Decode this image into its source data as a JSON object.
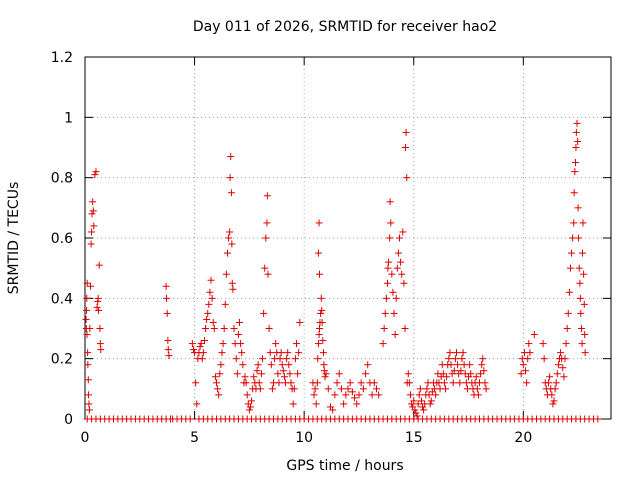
{
  "chart_data": {
    "type": "scatter",
    "title": "Day 011 of 2026, SRMTID for receiver hao2",
    "xlabel": "GPS time / hours",
    "ylabel": "SRMTID / TECUs",
    "xlim": [
      0,
      24
    ],
    "ylim": [
      0,
      1.2
    ],
    "xticks": [
      0,
      5,
      10,
      15,
      20
    ],
    "yticks": [
      0,
      0.2,
      0.4,
      0.6,
      0.8,
      1,
      1.2
    ],
    "ytick_labels": [
      "0",
      "0.2",
      "0.4",
      "0.6",
      "0.8",
      "1",
      "1.2"
    ],
    "grid": true,
    "grid_style": "dotted",
    "marker": "+",
    "color": "#dd0000",
    "points": [
      [
        0.05,
        0.33
      ],
      [
        0.06,
        0.3
      ],
      [
        0.07,
        0.36
      ],
      [
        0.08,
        0.4
      ],
      [
        0.09,
        0.28
      ],
      [
        0.1,
        0.45
      ],
      [
        0.12,
        0.22
      ],
      [
        0.13,
        0.18
      ],
      [
        0.15,
        0.13
      ],
      [
        0.16,
        0.08
      ],
      [
        0.18,
        0.05
      ],
      [
        0.2,
        0.03
      ],
      [
        0.22,
        0.3
      ],
      [
        0.25,
        0.44
      ],
      [
        0.28,
        0.58
      ],
      [
        0.3,
        0.62
      ],
      [
        0.32,
        0.68
      ],
      [
        0.35,
        0.72
      ],
      [
        0.38,
        0.69
      ],
      [
        0.4,
        0.64
      ],
      [
        0.45,
        0.81
      ],
      [
        0.5,
        0.82
      ],
      [
        0.55,
        0.37
      ],
      [
        0.58,
        0.39
      ],
      [
        0.6,
        0.4
      ],
      [
        0.62,
        0.36
      ],
      [
        0.65,
        0.51
      ],
      [
        0.68,
        0.3
      ],
      [
        0.7,
        0.25
      ],
      [
        0.72,
        0.23
      ],
      [
        3.7,
        0.44
      ],
      [
        3.72,
        0.4
      ],
      [
        3.75,
        0.35
      ],
      [
        3.78,
        0.26
      ],
      [
        3.8,
        0.23
      ],
      [
        3.83,
        0.21
      ],
      [
        4.9,
        0.25
      ],
      [
        4.95,
        0.23
      ],
      [
        5.0,
        0.22
      ],
      [
        5.05,
        0.12
      ],
      [
        5.1,
        0.05
      ],
      [
        5.15,
        0.2
      ],
      [
        5.2,
        0.22
      ],
      [
        5.25,
        0.24
      ],
      [
        5.3,
        0.25
      ],
      [
        5.35,
        0.2
      ],
      [
        5.4,
        0.22
      ],
      [
        5.45,
        0.26
      ],
      [
        5.5,
        0.3
      ],
      [
        5.55,
        0.33
      ],
      [
        5.6,
        0.35
      ],
      [
        5.65,
        0.38
      ],
      [
        5.7,
        0.42
      ],
      [
        5.75,
        0.46
      ],
      [
        5.8,
        0.4
      ],
      [
        5.85,
        0.32
      ],
      [
        5.9,
        0.3
      ],
      [
        5.95,
        0.14
      ],
      [
        6.0,
        0.12
      ],
      [
        6.05,
        0.1
      ],
      [
        6.1,
        0.08
      ],
      [
        6.15,
        0.15
      ],
      [
        6.2,
        0.18
      ],
      [
        6.25,
        0.22
      ],
      [
        6.3,
        0.25
      ],
      [
        6.35,
        0.3
      ],
      [
        6.4,
        0.38
      ],
      [
        6.45,
        0.48
      ],
      [
        6.5,
        0.55
      ],
      [
        6.55,
        0.6
      ],
      [
        6.6,
        0.62
      ],
      [
        6.62,
        0.8
      ],
      [
        6.65,
        0.87
      ],
      [
        6.68,
        0.75
      ],
      [
        6.7,
        0.58
      ],
      [
        6.72,
        0.45
      ],
      [
        6.75,
        0.43
      ],
      [
        6.8,
        0.3
      ],
      [
        6.85,
        0.25
      ],
      [
        6.9,
        0.2
      ],
      [
        6.95,
        0.15
      ],
      [
        7.0,
        0.28
      ],
      [
        7.05,
        0.32
      ],
      [
        7.1,
        0.25
      ],
      [
        7.15,
        0.22
      ],
      [
        7.2,
        0.18
      ],
      [
        7.25,
        0.12
      ],
      [
        7.3,
        0.14
      ],
      [
        7.35,
        0.12
      ],
      [
        7.4,
        0.08
      ],
      [
        7.45,
        0.05
      ],
      [
        7.5,
        0.03
      ],
      [
        7.55,
        0.04
      ],
      [
        7.6,
        0.06
      ],
      [
        7.65,
        0.1
      ],
      [
        7.7,
        0.14
      ],
      [
        7.75,
        0.12
      ],
      [
        7.8,
        0.1
      ],
      [
        7.85,
        0.16
      ],
      [
        7.9,
        0.18
      ],
      [
        7.95,
        0.12
      ],
      [
        8.0,
        0.1
      ],
      [
        8.05,
        0.15
      ],
      [
        8.1,
        0.2
      ],
      [
        8.15,
        0.35
      ],
      [
        8.2,
        0.5
      ],
      [
        8.25,
        0.6
      ],
      [
        8.3,
        0.65
      ],
      [
        8.32,
        0.74
      ],
      [
        8.35,
        0.48
      ],
      [
        8.4,
        0.3
      ],
      [
        8.45,
        0.22
      ],
      [
        8.5,
        0.18
      ],
      [
        8.55,
        0.1
      ],
      [
        8.6,
        0.12
      ],
      [
        8.65,
        0.2
      ],
      [
        8.7,
        0.25
      ],
      [
        8.75,
        0.22
      ],
      [
        8.8,
        0.15
      ],
      [
        8.85,
        0.12
      ],
      [
        8.9,
        0.2
      ],
      [
        8.95,
        0.22
      ],
      [
        9.0,
        0.18
      ],
      [
        9.05,
        0.16
      ],
      [
        9.1,
        0.14
      ],
      [
        9.15,
        0.12
      ],
      [
        9.2,
        0.2
      ],
      [
        9.25,
        0.22
      ],
      [
        9.3,
        0.18
      ],
      [
        9.35,
        0.15
      ],
      [
        9.4,
        0.12
      ],
      [
        9.45,
        0.1
      ],
      [
        9.5,
        0.05
      ],
      [
        9.55,
        0.1
      ],
      [
        9.6,
        0.2
      ],
      [
        9.65,
        0.25
      ],
      [
        9.7,
        0.15
      ],
      [
        9.75,
        0.22
      ],
      [
        9.8,
        0.32
      ],
      [
        10.4,
        0.12
      ],
      [
        10.45,
        0.08
      ],
      [
        10.5,
        0.1
      ],
      [
        10.55,
        0.05
      ],
      [
        10.6,
        0.12
      ],
      [
        10.62,
        0.2
      ],
      [
        10.65,
        0.25
      ],
      [
        10.68,
        0.28
      ],
      [
        10.7,
        0.3
      ],
      [
        10.72,
        0.32
      ],
      [
        10.75,
        0.35
      ],
      [
        10.78,
        0.4
      ],
      [
        10.8,
        0.36
      ],
      [
        10.82,
        0.32
      ],
      [
        10.85,
        0.26
      ],
      [
        10.88,
        0.22
      ],
      [
        10.9,
        0.18
      ],
      [
        10.92,
        0.16
      ],
      [
        10.95,
        0.14
      ],
      [
        11.0,
        0.15
      ],
      [
        10.65,
        0.55
      ],
      [
        10.68,
        0.65
      ],
      [
        10.7,
        0.48
      ],
      [
        11.1,
        0.1
      ],
      [
        11.2,
        0.04
      ],
      [
        11.3,
        0.03
      ],
      [
        11.4,
        0.08
      ],
      [
        11.5,
        0.12
      ],
      [
        11.6,
        0.15
      ],
      [
        11.7,
        0.1
      ],
      [
        11.8,
        0.05
      ],
      [
        11.9,
        0.08
      ],
      [
        12.0,
        0.1
      ],
      [
        12.1,
        0.12
      ],
      [
        12.2,
        0.09
      ],
      [
        12.3,
        0.07
      ],
      [
        12.4,
        0.05
      ],
      [
        12.5,
        0.08
      ],
      [
        12.6,
        0.12
      ],
      [
        12.7,
        0.1
      ],
      [
        12.8,
        0.15
      ],
      [
        12.9,
        0.18
      ],
      [
        13.0,
        0.12
      ],
      [
        13.1,
        0.08
      ],
      [
        13.2,
        0.12
      ],
      [
        13.3,
        0.1
      ],
      [
        13.4,
        0.08
      ],
      [
        13.6,
        0.25
      ],
      [
        13.65,
        0.3
      ],
      [
        13.7,
        0.35
      ],
      [
        13.75,
        0.4
      ],
      [
        13.8,
        0.45
      ],
      [
        13.82,
        0.5
      ],
      [
        13.85,
        0.52
      ],
      [
        13.9,
        0.6
      ],
      [
        13.92,
        0.72
      ],
      [
        13.95,
        0.65
      ],
      [
        14.0,
        0.48
      ],
      [
        14.05,
        0.42
      ],
      [
        14.1,
        0.35
      ],
      [
        14.15,
        0.28
      ],
      [
        14.2,
        0.4
      ],
      [
        14.25,
        0.5
      ],
      [
        14.3,
        0.55
      ],
      [
        14.35,
        0.6
      ],
      [
        14.4,
        0.52
      ],
      [
        14.45,
        0.48
      ],
      [
        14.5,
        0.62
      ],
      [
        14.55,
        0.45
      ],
      [
        14.6,
        0.3
      ],
      [
        14.62,
        0.9
      ],
      [
        14.65,
        0.95
      ],
      [
        14.68,
        0.8
      ],
      [
        14.7,
        0.12
      ],
      [
        14.75,
        0.15
      ],
      [
        14.8,
        0.12
      ],
      [
        14.85,
        0.08
      ],
      [
        14.9,
        0.05
      ],
      [
        14.95,
        0.04
      ],
      [
        15.0,
        0.06
      ],
      [
        15.05,
        0.03
      ],
      [
        15.1,
        0.02
      ],
      [
        15.15,
        0.01
      ],
      [
        15.2,
        0.05
      ],
      [
        15.25,
        0.08
      ],
      [
        15.3,
        0.1
      ],
      [
        15.35,
        0.06
      ],
      [
        15.4,
        0.04
      ],
      [
        15.45,
        0.03
      ],
      [
        15.5,
        0.05
      ],
      [
        15.55,
        0.08
      ],
      [
        15.6,
        0.1
      ],
      [
        15.65,
        0.12
      ],
      [
        15.7,
        0.08
      ],
      [
        15.75,
        0.05
      ],
      [
        15.8,
        0.06
      ],
      [
        15.85,
        0.09
      ],
      [
        15.9,
        0.12
      ],
      [
        15.95,
        0.1
      ],
      [
        16.0,
        0.08
      ],
      [
        16.05,
        0.12
      ],
      [
        16.1,
        0.15
      ],
      [
        16.15,
        0.12
      ],
      [
        16.2,
        0.1
      ],
      [
        16.25,
        0.14
      ],
      [
        16.3,
        0.18
      ],
      [
        16.35,
        0.15
      ],
      [
        16.4,
        0.12
      ],
      [
        16.45,
        0.1
      ],
      [
        16.5,
        0.14
      ],
      [
        16.55,
        0.18
      ],
      [
        16.6,
        0.2
      ],
      [
        16.65,
        0.22
      ],
      [
        16.7,
        0.18
      ],
      [
        16.75,
        0.15
      ],
      [
        16.8,
        0.12
      ],
      [
        16.85,
        0.16
      ],
      [
        16.9,
        0.2
      ],
      [
        16.95,
        0.22
      ],
      [
        17.0,
        0.18
      ],
      [
        17.05,
        0.15
      ],
      [
        17.1,
        0.12
      ],
      [
        17.15,
        0.16
      ],
      [
        17.2,
        0.2
      ],
      [
        17.25,
        0.22
      ],
      [
        17.3,
        0.18
      ],
      [
        17.35,
        0.15
      ],
      [
        17.4,
        0.12
      ],
      [
        17.45,
        0.1
      ],
      [
        17.5,
        0.14
      ],
      [
        17.55,
        0.18
      ],
      [
        17.6,
        0.15
      ],
      [
        17.65,
        0.12
      ],
      [
        17.7,
        0.1
      ],
      [
        17.75,
        0.08
      ],
      [
        17.8,
        0.12
      ],
      [
        17.85,
        0.14
      ],
      [
        17.9,
        0.1
      ],
      [
        17.95,
        0.08
      ],
      [
        18.0,
        0.12
      ],
      [
        18.05,
        0.15
      ],
      [
        18.1,
        0.18
      ],
      [
        18.15,
        0.2
      ],
      [
        18.2,
        0.16
      ],
      [
        18.25,
        0.12
      ],
      [
        18.3,
        0.1
      ],
      [
        19.9,
        0.15
      ],
      [
        19.95,
        0.2
      ],
      [
        20.0,
        0.18
      ],
      [
        20.05,
        0.22
      ],
      [
        20.1,
        0.16
      ],
      [
        20.15,
        0.12
      ],
      [
        20.2,
        0.2
      ],
      [
        20.25,
        0.25
      ],
      [
        20.3,
        0.22
      ],
      [
        20.5,
        0.28
      ],
      [
        20.9,
        0.25
      ],
      [
        20.95,
        0.2
      ],
      [
        21.0,
        0.12
      ],
      [
        21.05,
        0.1
      ],
      [
        21.1,
        0.08
      ],
      [
        21.15,
        0.12
      ],
      [
        21.2,
        0.14
      ],
      [
        21.25,
        0.1
      ],
      [
        21.3,
        0.08
      ],
      [
        21.35,
        0.05
      ],
      [
        21.4,
        0.06
      ],
      [
        21.45,
        0.1
      ],
      [
        21.5,
        0.12
      ],
      [
        21.55,
        0.15
      ],
      [
        21.6,
        0.18
      ],
      [
        21.65,
        0.2
      ],
      [
        21.7,
        0.22
      ],
      [
        21.75,
        0.2
      ],
      [
        21.8,
        0.17
      ],
      [
        21.85,
        0.14
      ],
      [
        21.9,
        0.2
      ],
      [
        21.95,
        0.25
      ],
      [
        22.0,
        0.3
      ],
      [
        22.05,
        0.35
      ],
      [
        22.1,
        0.42
      ],
      [
        22.15,
        0.5
      ],
      [
        22.2,
        0.55
      ],
      [
        22.25,
        0.6
      ],
      [
        22.3,
        0.65
      ],
      [
        22.32,
        0.75
      ],
      [
        22.35,
        0.82
      ],
      [
        22.38,
        0.85
      ],
      [
        22.4,
        0.9
      ],
      [
        22.42,
        0.95
      ],
      [
        22.45,
        0.98
      ],
      [
        22.48,
        0.92
      ],
      [
        22.5,
        0.7
      ],
      [
        22.52,
        0.6
      ],
      [
        22.55,
        0.5
      ],
      [
        22.58,
        0.45
      ],
      [
        22.6,
        0.4
      ],
      [
        22.62,
        0.35
      ],
      [
        22.65,
        0.3
      ],
      [
        22.68,
        0.25
      ],
      [
        22.7,
        0.55
      ],
      [
        22.72,
        0.65
      ],
      [
        22.75,
        0.48
      ],
      [
        22.78,
        0.38
      ],
      [
        22.8,
        0.28
      ],
      [
        22.82,
        0.22
      ]
    ],
    "zero_points_x": [
      0.1,
      0.3,
      0.5,
      0.7,
      0.9,
      1.1,
      1.3,
      1.5,
      1.7,
      1.9,
      2.1,
      2.3,
      2.5,
      2.7,
      2.9,
      3.1,
      3.3,
      3.5,
      3.7,
      3.9,
      4.0,
      4.2,
      4.4,
      4.6,
      4.8,
      5.2,
      5.4,
      5.6,
      5.8,
      6.0,
      6.2,
      6.4,
      6.6,
      6.8,
      7.0,
      7.2,
      7.4,
      7.6,
      7.8,
      8.0,
      8.2,
      8.4,
      8.6,
      8.8,
      9.0,
      9.2,
      9.4,
      9.6,
      9.8,
      10.0,
      10.2,
      10.4,
      10.6,
      10.8,
      11.0,
      11.2,
      11.4,
      11.6,
      11.8,
      12.0,
      12.2,
      12.4,
      12.6,
      12.8,
      13.0,
      13.2,
      13.4,
      13.6,
      13.8,
      14.0,
      14.2,
      14.4,
      14.6,
      14.8,
      15.0,
      15.2,
      15.4,
      15.6,
      15.8,
      16.0,
      16.2,
      16.4,
      16.6,
      16.8,
      17.0,
      17.2,
      17.4,
      17.6,
      17.8,
      18.0,
      18.2,
      18.4,
      18.6,
      18.8,
      19.0,
      19.2,
      19.4,
      19.6,
      19.8,
      20.0,
      20.2,
      20.4,
      20.6,
      20.8,
      21.0,
      21.2,
      21.4,
      21.6,
      21.8,
      22.0,
      22.2,
      22.4,
      22.6,
      22.8,
      23.0,
      23.2,
      23.4
    ]
  }
}
